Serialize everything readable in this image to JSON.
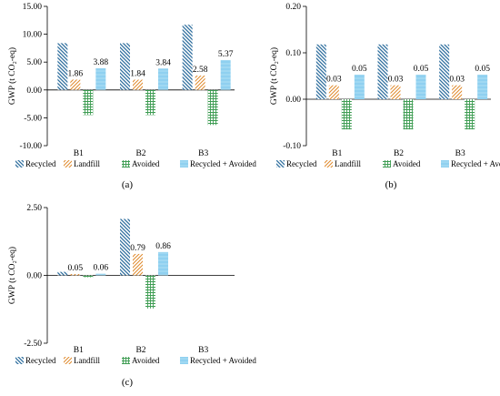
{
  "colors": {
    "Recycled": "#2e6e9e",
    "Landfill": "#e08a2c",
    "Avoided": "#3d9c52",
    "Recycled + Avoided": "#8fd0f0"
  },
  "chart_data": [
    {
      "type": "bar",
      "panel_label": "(a)",
      "categories": [
        "B1",
        "B2",
        "B3"
      ],
      "ylabel": "GWP (t CO₂-eq)",
      "ylim": [
        -10,
        15
      ],
      "yticks": [
        "-10.00",
        "-5.00",
        "0.00",
        "5.00",
        "10.00",
        "15.00"
      ],
      "grid": false,
      "legend_position": "bottom",
      "series": [
        {
          "name": "Recycled",
          "values": [
            8.4,
            8.4,
            11.7
          ],
          "labels": [
            "",
            "",
            ""
          ]
        },
        {
          "name": "Landfill",
          "values": [
            1.86,
            1.84,
            2.58
          ],
          "labels": [
            "1.86",
            "1.84",
            "2.58"
          ]
        },
        {
          "name": "Avoided",
          "values": [
            -4.5,
            -4.5,
            -6.3
          ],
          "labels": [
            "",
            "",
            ""
          ]
        },
        {
          "name": "Recycled + Avoided",
          "values": [
            3.88,
            3.84,
            5.37
          ],
          "labels": [
            "3.88",
            "3.84",
            "5.37"
          ]
        }
      ]
    },
    {
      "type": "bar",
      "panel_label": "(b)",
      "categories": [
        "B1",
        "B2",
        "B3"
      ],
      "ylabel": "GWP (t CO₂-eq)",
      "ylim": [
        -0.1,
        0.2
      ],
      "yticks": [
        "-0.10",
        "0.00",
        "0.10",
        "0.20"
      ],
      "grid": false,
      "legend_position": "bottom",
      "series": [
        {
          "name": "Recycled",
          "values": [
            0.118,
            0.118,
            0.118
          ],
          "labels": [
            "",
            "",
            ""
          ]
        },
        {
          "name": "Landfill",
          "values": [
            0.03,
            0.03,
            0.03
          ],
          "labels": [
            "0.03",
            "0.03",
            "0.03"
          ]
        },
        {
          "name": "Avoided",
          "values": [
            -0.065,
            -0.065,
            -0.065
          ],
          "labels": [
            "",
            "",
            ""
          ]
        },
        {
          "name": "Recycled + Avoided",
          "values": [
            0.053,
            0.053,
            0.053
          ],
          "labels": [
            "0.05",
            "0.05",
            "0.05"
          ]
        }
      ]
    },
    {
      "type": "bar",
      "panel_label": "(c)",
      "categories": [
        "B1",
        "B2",
        "B3"
      ],
      "ylabel": "GWP (t CO₂-eq)",
      "ylim": [
        -2.5,
        2.5
      ],
      "yticks": [
        "-2.50",
        "0.00",
        "2.50"
      ],
      "grid": false,
      "legend_position": "bottom",
      "series": [
        {
          "name": "Recycled",
          "values": [
            0.13,
            2.08,
            0
          ],
          "labels": [
            "",
            "",
            ""
          ]
        },
        {
          "name": "Landfill",
          "values": [
            0.05,
            0.79,
            0
          ],
          "labels": [
            "0.05",
            "0.79",
            ""
          ]
        },
        {
          "name": "Avoided",
          "values": [
            -0.07,
            -1.22,
            0
          ],
          "labels": [
            "",
            "",
            ""
          ]
        },
        {
          "name": "Recycled + Avoided",
          "values": [
            0.06,
            0.86,
            0
          ],
          "labels": [
            "0.06",
            "0.86",
            ""
          ]
        }
      ]
    }
  ]
}
